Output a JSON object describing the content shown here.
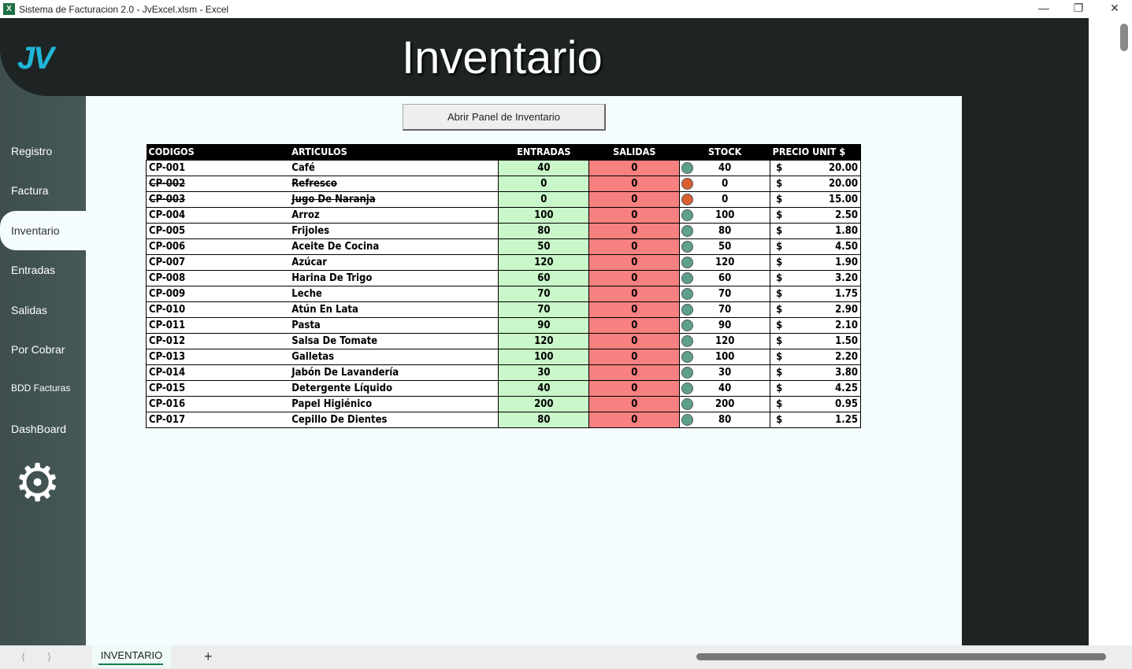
{
  "window": {
    "title": "Sistema de Facturacion 2.0 - JvExcel.xlsm - Excel",
    "app_icon": "X"
  },
  "header": {
    "logo": "JV",
    "title": "Inventario"
  },
  "sidebar": {
    "items": [
      {
        "label": "Registro"
      },
      {
        "label": "Factura"
      },
      {
        "label": "Inventario",
        "active": true
      },
      {
        "label": "Entradas"
      },
      {
        "label": "Salidas"
      },
      {
        "label": "Por Cobrar"
      },
      {
        "label": "BDD Facturas"
      },
      {
        "label": "DashBoard"
      }
    ],
    "settings_icon": "gear-icon"
  },
  "panel_button": "Abrir Panel de Inventario",
  "table": {
    "headers": [
      "CODIGOS",
      "ARTICULOS",
      "ENTRADAS",
      "SALIDAS",
      "STOCK",
      "PRECIO UNIT $"
    ],
    "currency": "$",
    "status_colors": {
      "ok": "#5fa08a",
      "inactive": "#d9602d"
    },
    "rows": [
      {
        "code": "CP-001",
        "article": "Café",
        "in": "40",
        "out": "0",
        "stock": "40",
        "price": "20.00",
        "inactive": false
      },
      {
        "code": "CP-002",
        "article": "Refresco",
        "in": "0",
        "out": "0",
        "stock": "0",
        "price": "20.00",
        "inactive": true
      },
      {
        "code": "CP-003",
        "article": "Jugo De Naranja",
        "in": "0",
        "out": "0",
        "stock": "0",
        "price": "15.00",
        "inactive": true
      },
      {
        "code": "CP-004",
        "article": "Arroz",
        "in": "100",
        "out": "0",
        "stock": "100",
        "price": "2.50",
        "inactive": false
      },
      {
        "code": "CP-005",
        "article": "Frijoles",
        "in": "80",
        "out": "0",
        "stock": "80",
        "price": "1.80",
        "inactive": false
      },
      {
        "code": "CP-006",
        "article": "Aceite De Cocina",
        "in": "50",
        "out": "0",
        "stock": "50",
        "price": "4.50",
        "inactive": false
      },
      {
        "code": "CP-007",
        "article": "Azúcar",
        "in": "120",
        "out": "0",
        "stock": "120",
        "price": "1.90",
        "inactive": false
      },
      {
        "code": "CP-008",
        "article": "Harina De Trigo",
        "in": "60",
        "out": "0",
        "stock": "60",
        "price": "3.20",
        "inactive": false
      },
      {
        "code": "CP-009",
        "article": "Leche",
        "in": "70",
        "out": "0",
        "stock": "70",
        "price": "1.75",
        "inactive": false
      },
      {
        "code": "CP-010",
        "article": "Atún En Lata",
        "in": "70",
        "out": "0",
        "stock": "70",
        "price": "2.90",
        "inactive": false
      },
      {
        "code": "CP-011",
        "article": "Pasta",
        "in": "90",
        "out": "0",
        "stock": "90",
        "price": "2.10",
        "inactive": false
      },
      {
        "code": "CP-012",
        "article": "Salsa De Tomate",
        "in": "120",
        "out": "0",
        "stock": "120",
        "price": "1.50",
        "inactive": false
      },
      {
        "code": "CP-013",
        "article": "Galletas",
        "in": "100",
        "out": "0",
        "stock": "100",
        "price": "2.20",
        "inactive": false
      },
      {
        "code": "CP-014",
        "article": "Jabón De Lavandería",
        "in": "30",
        "out": "0",
        "stock": "30",
        "price": "3.80",
        "inactive": false
      },
      {
        "code": "CP-015",
        "article": "Detergente Líquido",
        "in": "40",
        "out": "0",
        "stock": "40",
        "price": "4.25",
        "inactive": false
      },
      {
        "code": "CP-016",
        "article": "Papel Higiénico",
        "in": "200",
        "out": "0",
        "stock": "200",
        "price": "0.95",
        "inactive": false
      },
      {
        "code": "CP-017",
        "article": "Cepillo De Dientes",
        "in": "80",
        "out": "0",
        "stock": "80",
        "price": "1.25",
        "inactive": false
      }
    ]
  },
  "sheet_tabs": [
    {
      "label": "INVENTARIO",
      "active": true
    }
  ],
  "add_sheet": "+"
}
